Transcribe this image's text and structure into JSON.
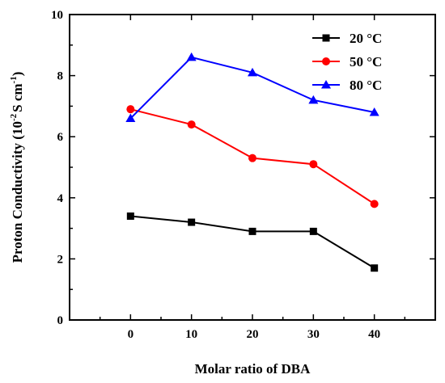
{
  "chart_data": {
    "type": "line",
    "title": "",
    "xlabel": "Molar ratio of DBA",
    "ylabel_prefix": "Proton Conductivity (10",
    "ylabel_exp1": "-2",
    "ylabel_mid": "S cm",
    "ylabel_exp2": "-1",
    "ylabel_suffix": ")",
    "x": [
      0,
      10,
      20,
      30,
      40
    ],
    "xlim": [
      -10,
      50
    ],
    "ylim": [
      0,
      10
    ],
    "xticks": [
      "0",
      "10",
      "20",
      "30",
      "40"
    ],
    "yticks": [
      "0",
      "2",
      "4",
      "6",
      "8",
      "10"
    ],
    "grid": false,
    "legend_position": "top-right",
    "series": [
      {
        "name": "20 °C",
        "color": "#000000",
        "marker": "square",
        "values": [
          3.4,
          3.2,
          2.9,
          2.9,
          1.7
        ]
      },
      {
        "name": "50 °C",
        "color": "#ff0000",
        "marker": "circle",
        "values": [
          6.9,
          6.4,
          5.3,
          5.1,
          3.8
        ]
      },
      {
        "name": "80 °C",
        "color": "#0000ff",
        "marker": "triangle",
        "values": [
          6.6,
          8.6,
          8.1,
          7.2,
          6.8
        ]
      }
    ]
  }
}
